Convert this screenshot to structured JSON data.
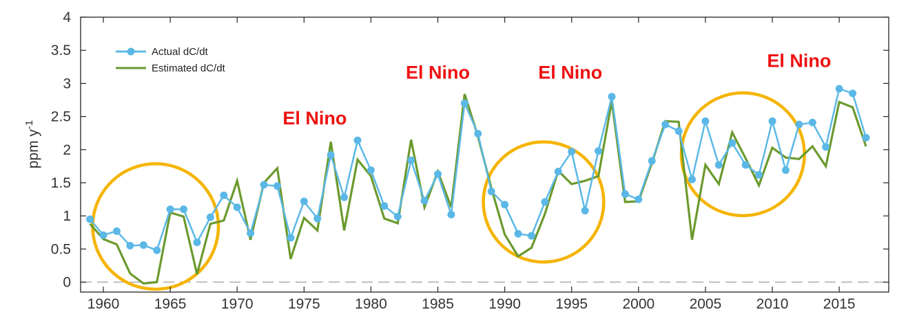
{
  "chart_data": {
    "type": "line",
    "title": "",
    "xlabel": "",
    "ylabel": "ppm y",
    "ylabel_superscript": "-1",
    "xlim": [
      1958.3,
      2018.7
    ],
    "ylim": [
      -0.15,
      4
    ],
    "x_ticks": [
      1960,
      1965,
      1970,
      1975,
      1980,
      1985,
      1990,
      1995,
      2000,
      2005,
      2010,
      2015
    ],
    "x_tick_labels": [
      "1960",
      "1965",
      "1970",
      "1975",
      "1980",
      "1985",
      "1990",
      "1995",
      "2000",
      "2005",
      "2010",
      "2015"
    ],
    "y_ticks": [
      0,
      0.5,
      1,
      1.5,
      2,
      2.5,
      3,
      3.5,
      4
    ],
    "y_tick_labels": [
      "0",
      "0.5",
      "1",
      "1.5",
      "2",
      "2.5",
      "3",
      "3.5",
      "4"
    ],
    "grid": false,
    "legend_position": "top-left",
    "zero_line": {
      "y": 0,
      "style": "dashed",
      "color": "#aaaaaa"
    },
    "x": [
      1959,
      1960,
      1961,
      1962,
      1963,
      1964,
      1965,
      1966,
      1967,
      1968,
      1969,
      1970,
      1971,
      1972,
      1973,
      1974,
      1975,
      1976,
      1977,
      1978,
      1979,
      1980,
      1981,
      1982,
      1983,
      1984,
      1985,
      1986,
      1987,
      1988,
      1989,
      1990,
      1991,
      1992,
      1993,
      1994,
      1995,
      1996,
      1997,
      1998,
      1999,
      2000,
      2001,
      2002,
      2003,
      2004,
      2005,
      2006,
      2007,
      2008,
      2009,
      2010,
      2011,
      2012,
      2013,
      2014,
      2015,
      2016,
      2017
    ],
    "series": [
      {
        "name": "Actual dC/dt",
        "color": "#5bb8e6",
        "markers": true,
        "values": [
          0.95,
          0.71,
          0.77,
          0.55,
          0.56,
          0.48,
          1.1,
          1.1,
          0.6,
          0.98,
          1.31,
          1.13,
          0.74,
          1.47,
          1.45,
          0.67,
          1.22,
          0.96,
          1.92,
          1.28,
          2.14,
          1.69,
          1.15,
          0.99,
          1.84,
          1.23,
          1.63,
          1.02,
          2.7,
          2.24,
          1.37,
          1.17,
          0.73,
          0.7,
          1.21,
          1.67,
          1.97,
          1.08,
          1.98,
          2.8,
          1.33,
          1.25,
          1.83,
          2.38,
          2.28,
          1.55,
          2.43,
          1.77,
          2.1,
          1.77,
          1.62,
          2.43,
          1.69,
          2.38,
          2.41,
          2.04,
          2.92,
          2.85,
          2.18
        ]
      },
      {
        "name": "Estimated dC/dt",
        "color": "#6b9a2e",
        "markers": false,
        "values": [
          0.88,
          0.65,
          0.57,
          0.13,
          -0.02,
          0.0,
          1.05,
          0.99,
          0.12,
          0.88,
          0.93,
          1.53,
          0.64,
          1.5,
          1.72,
          0.35,
          0.97,
          0.78,
          2.12,
          0.78,
          1.85,
          1.6,
          0.96,
          0.89,
          2.15,
          1.13,
          1.67,
          1.13,
          2.84,
          2.2,
          1.42,
          0.72,
          0.39,
          0.52,
          1.03,
          1.68,
          1.48,
          1.53,
          1.6,
          2.73,
          1.21,
          1.22,
          1.8,
          2.43,
          2.42,
          0.64,
          1.77,
          1.48,
          2.26,
          1.87,
          1.46,
          2.03,
          1.88,
          1.86,
          2.05,
          1.75,
          2.72,
          2.64,
          2.05
        ]
      }
    ],
    "annotations": [
      {
        "text": "El Nino",
        "x": 1975.8,
        "y": 2.38
      },
      {
        "text": "El Nino",
        "x": 1985.0,
        "y": 3.07
      },
      {
        "text": "El Nino",
        "x": 1994.9,
        "y": 3.07
      },
      {
        "text": "El Nino",
        "x": 2012.0,
        "y": 3.25
      }
    ],
    "highlight_circles": [
      {
        "cx": 1963.9,
        "cy": 0.84,
        "r_years": 4.7,
        "color": "#f5b400"
      },
      {
        "cx": 1992.9,
        "cy": 1.21,
        "r_years": 4.5,
        "color": "#f5b400"
      },
      {
        "cx": 2007.8,
        "cy": 1.93,
        "r_years": 4.6,
        "color": "#f5b400"
      }
    ]
  }
}
